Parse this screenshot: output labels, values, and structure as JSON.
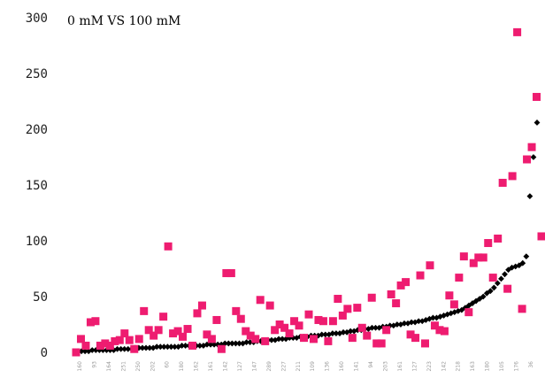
{
  "chart_data": {
    "type": "scatter",
    "title": "0 mM VS 100 mM",
    "xlabel": "",
    "ylabel": "",
    "ylim": [
      0,
      300
    ],
    "yticks": [
      0,
      50,
      100,
      150,
      200,
      250,
      300
    ],
    "grid": false,
    "legend": "none",
    "x_tick_labels": [
      "160",
      "93",
      "164",
      "251",
      "250",
      "202",
      "60",
      "180",
      "162",
      "161",
      "142",
      "127",
      "147",
      "289",
      "227",
      "211",
      "109",
      "136",
      "160",
      "141",
      "94",
      "203",
      "161",
      "127",
      "223",
      "142",
      "218",
      "163",
      "180",
      "105",
      "176",
      "36"
    ],
    "series": [
      {
        "marker": "diamond",
        "color": "#000000",
        "values": [
          1,
          1,
          1,
          1,
          2,
          2,
          2,
          2,
          2,
          2,
          2,
          3,
          3,
          3,
          3,
          3,
          4,
          4,
          4,
          4,
          4,
          4,
          5,
          5,
          5,
          5,
          5,
          5,
          5,
          6,
          6,
          6,
          6,
          6,
          6,
          6,
          7,
          7,
          7,
          7,
          7,
          8,
          8,
          8,
          8,
          8,
          8,
          9,
          9,
          9,
          10,
          10,
          10,
          11,
          11,
          11,
          12,
          12,
          12,
          13,
          13,
          13,
          14,
          14,
          14,
          15,
          15,
          15,
          16,
          16,
          16,
          17,
          17,
          17,
          18,
          18,
          19,
          19,
          20,
          20,
          21,
          21,
          22,
          22,
          22,
          23,
          23,
          24,
          24,
          25,
          25,
          26,
          26,
          27,
          27,
          28,
          28,
          29,
          30,
          31,
          31,
          32,
          33,
          34,
          35,
          36,
          37,
          38,
          40,
          42,
          44,
          46,
          48,
          50,
          53,
          55,
          58,
          62,
          66,
          70,
          74,
          76,
          77,
          78,
          80,
          86,
          140,
          175,
          206
        ]
      },
      {
        "marker": "square",
        "color": "#ee1c70",
        "values": [
          0,
          12,
          6,
          27,
          28,
          6,
          8,
          6,
          10,
          11,
          17,
          11,
          3,
          12,
          37,
          20,
          15,
          20,
          32,
          95,
          17,
          19,
          14,
          21,
          6,
          35,
          42,
          16,
          12,
          29,
          3,
          71,
          71,
          37,
          30,
          19,
          15,
          12,
          47,
          10,
          42,
          20,
          25,
          22,
          17,
          28,
          24,
          13,
          34,
          12,
          29,
          28,
          10,
          28,
          48,
          33,
          39,
          13,
          40,
          22,
          15,
          49,
          8,
          8,
          20,
          52,
          44,
          60,
          63,
          16,
          13,
          69,
          8,
          78,
          24,
          20,
          19,
          51,
          43,
          67,
          86,
          36,
          80,
          85,
          85,
          98,
          67,
          102,
          152,
          57,
          158,
          287,
          39,
          173,
          184,
          229,
          104
        ]
      }
    ]
  }
}
